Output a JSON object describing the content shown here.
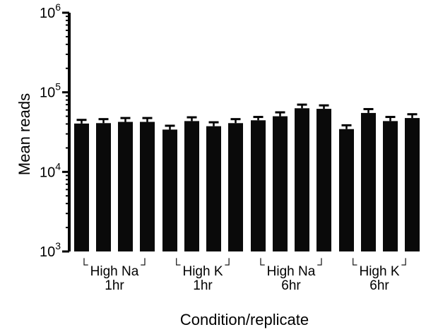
{
  "chart_data": {
    "type": "bar",
    "title": "",
    "xlabel": "Condition/replicate",
    "ylabel": "Mean reads",
    "yscale": "log",
    "ylim": [
      1000,
      1000000
    ],
    "y_ticks": [
      {
        "base": "10",
        "exp": "3",
        "value": 1000
      },
      {
        "base": "10",
        "exp": "4",
        "value": 10000
      },
      {
        "base": "10",
        "exp": "5",
        "value": 100000
      },
      {
        "base": "10",
        "exp": "6",
        "value": 1000000
      }
    ],
    "groups": [
      {
        "line1": "High Na",
        "line2": "1hr",
        "bar_count": 4
      },
      {
        "line1": "High K",
        "line2": "1hr",
        "bar_count": 4
      },
      {
        "line1": "High Na",
        "line2": "6hr",
        "bar_count": 4
      },
      {
        "line1": "High K",
        "line2": "6hr",
        "bar_count": 4
      }
    ],
    "values": [
      40500,
      41000,
      42500,
      42500,
      34000,
      43500,
      37500,
      41000,
      44500,
      50000,
      63000,
      62000,
      34500,
      55000,
      43500,
      47500
    ],
    "errors": [
      4500,
      5000,
      5000,
      5000,
      4000,
      5000,
      4500,
      5000,
      4500,
      6000,
      7000,
      6500,
      4000,
      6500,
      5500,
      5500
    ],
    "bar_color": "#0a0a0a",
    "grid": false,
    "legend": "none"
  }
}
